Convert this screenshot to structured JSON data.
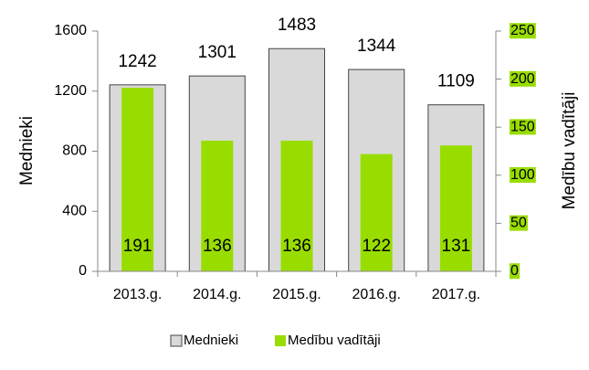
{
  "chart_data": {
    "type": "bar",
    "categories": [
      "2013.g.",
      "2014.g.",
      "2015.g.",
      "2016.g.",
      "2017.g."
    ],
    "series": [
      {
        "name": "Mednieki",
        "color": "#d9d9d9",
        "values": [
          1242,
          1301,
          1483,
          1344,
          1109
        ]
      },
      {
        "name": "Medību vadītāji",
        "color": "#99dd00",
        "axis": "y2",
        "values": [
          191,
          136,
          136,
          122,
          131
        ]
      }
    ],
    "y_label": "Mednieki",
    "y2_label": "Medību vadītāji",
    "ylim": [
      0,
      1600
    ],
    "yticks": [
      0,
      400,
      800,
      1200,
      1600
    ],
    "y2lim": [
      0,
      250
    ],
    "y2ticks": [
      0,
      50,
      100,
      150,
      200,
      250
    ],
    "legend": "bottom"
  }
}
